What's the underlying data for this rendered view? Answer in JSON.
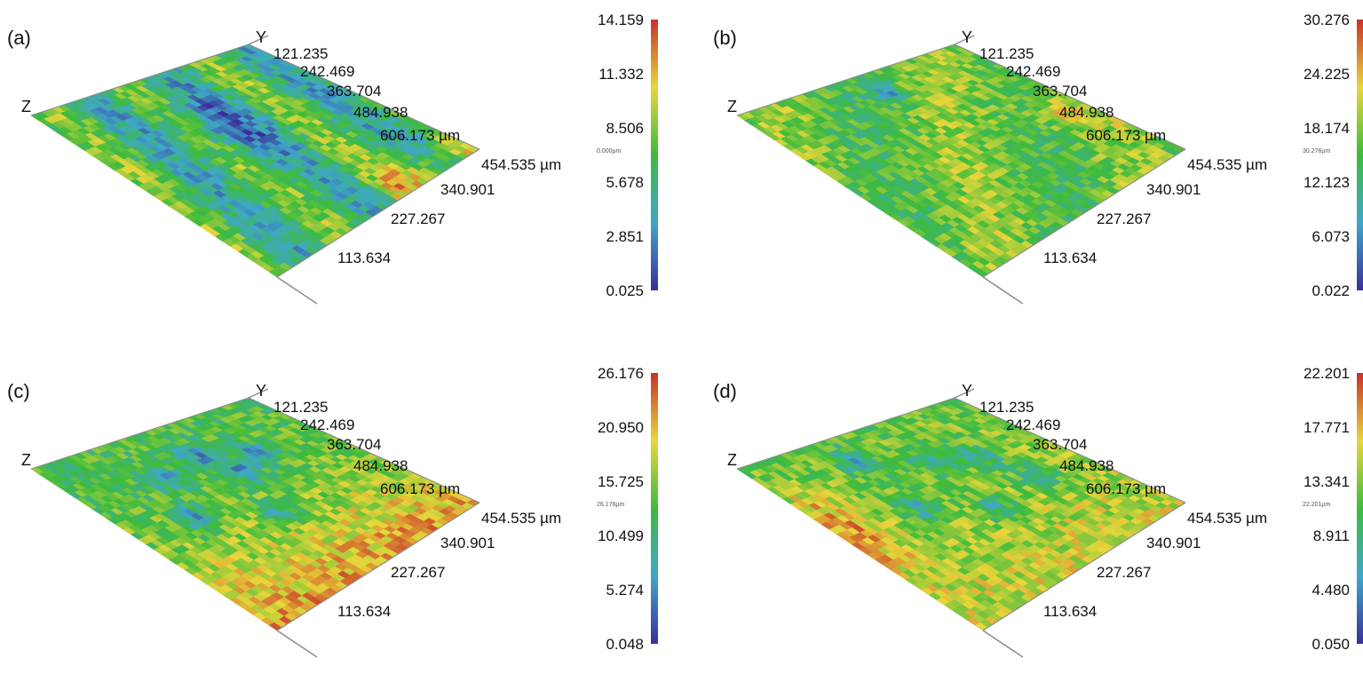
{
  "panels": [
    {
      "id": "a",
      "label": "(a)",
      "axis_y_label": "Y",
      "axis_z_label": "Z",
      "y_ticks": [
        "121.235",
        "242.469",
        "363.704",
        "484.938",
        "606.173 µm"
      ],
      "x_ticks": [
        "454.535 µm",
        "340.901",
        "227.267",
        "113.634"
      ],
      "colorbar_ticks": [
        "14.159",
        "11.332",
        "8.506",
        "5.678",
        "2.851",
        "0.025"
      ],
      "tiny_label": "0.000µm",
      "pattern": "stripes"
    },
    {
      "id": "b",
      "label": "(b)",
      "axis_y_label": "Y",
      "axis_z_label": "Z",
      "y_ticks": [
        "121.235",
        "242.469",
        "363.704",
        "484.938",
        "606.173 µm"
      ],
      "x_ticks": [
        "454.535 µm",
        "340.901",
        "227.267",
        "113.634"
      ],
      "colorbar_ticks": [
        "30.276",
        "24.225",
        "18.174",
        "12.123",
        "6.073",
        "0.022"
      ],
      "tiny_label": "30.276µm",
      "pattern": "uniform"
    },
    {
      "id": "c",
      "label": "(c)",
      "axis_y_label": "Y",
      "axis_z_label": "Z",
      "y_ticks": [
        "121.235",
        "242.469",
        "363.704",
        "484.938",
        "606.173 µm"
      ],
      "x_ticks": [
        "454.535 µm",
        "340.901",
        "227.267",
        "113.634"
      ],
      "colorbar_ticks": [
        "26.176",
        "20.950",
        "15.725",
        "10.499",
        "5.274",
        "0.048"
      ],
      "tiny_label": "26.176µm",
      "pattern": "pits-red"
    },
    {
      "id": "d",
      "label": "(d)",
      "axis_y_label": "Y",
      "axis_z_label": "Z",
      "y_ticks": [
        "121.235",
        "242.469",
        "363.704",
        "484.938",
        "606.173 µm"
      ],
      "x_ticks": [
        "454.535 µm",
        "340.901",
        "227.267",
        "113.634"
      ],
      "colorbar_ticks": [
        "22.201",
        "17.771",
        "13.341",
        "8.911",
        "4.480",
        "0.050"
      ],
      "tiny_label": "22.201µm",
      "pattern": "pits"
    }
  ],
  "colors": {
    "low": "#3b2f9a",
    "mid_low": "#3fa7c9",
    "mid": "#3dbb3d",
    "mid_high": "#e8d73a",
    "high": "#c8322a",
    "axis_line": "#8c8c8c"
  }
}
